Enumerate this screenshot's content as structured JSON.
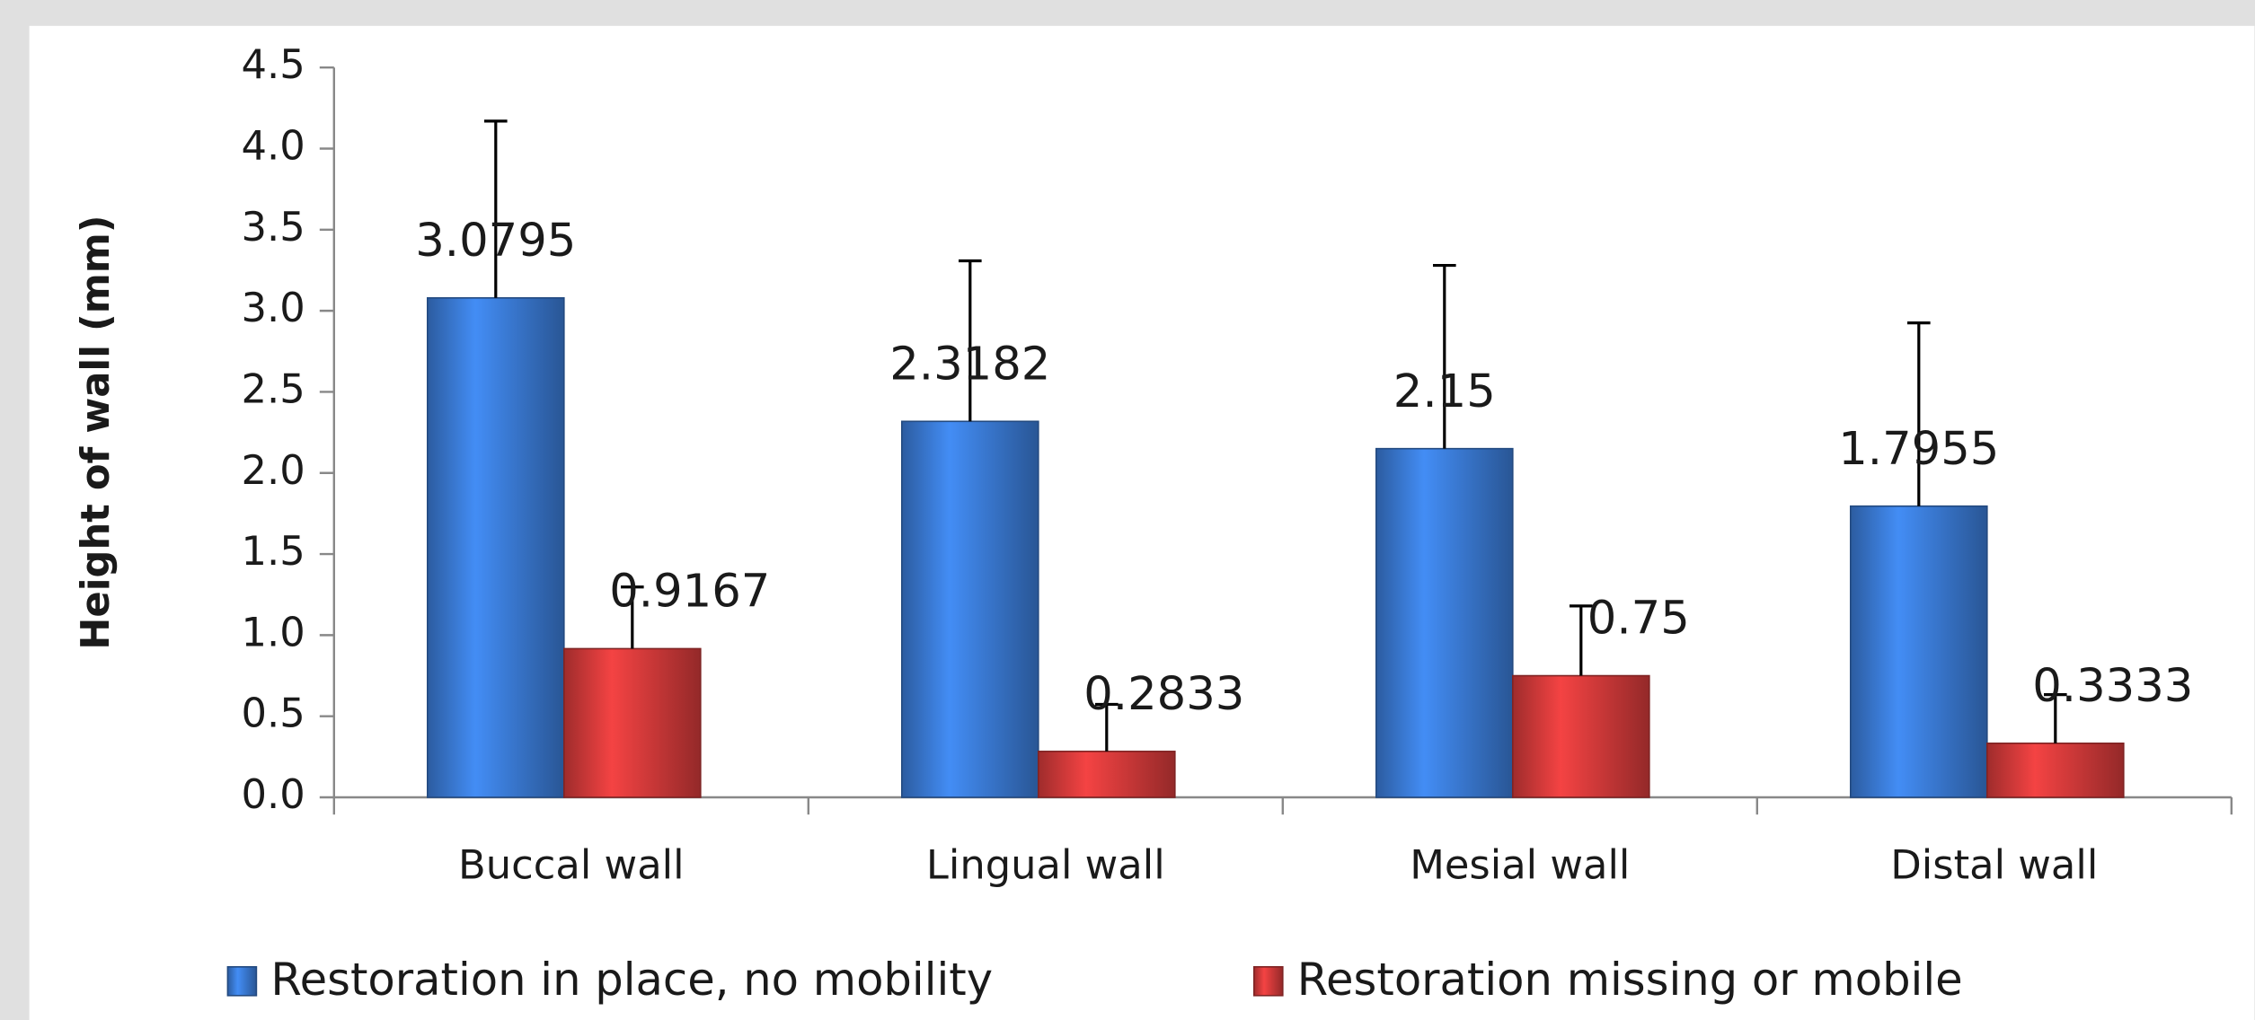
{
  "chart_data": {
    "type": "bar",
    "y_axis_label": "Height of wall (mm)",
    "categories": [
      "Buccal wall",
      "Lingual wall",
      "Mesial wall",
      "Distal wall"
    ],
    "series": [
      {
        "name": "Restoration in place, no mobility",
        "color": "#3a7bd5",
        "values": [
          3.0795,
          2.3182,
          2.15,
          1.7955
        ],
        "errors": [
          1.09,
          0.99,
          1.13,
          1.13
        ]
      },
      {
        "name": "Restoration missing or mobile",
        "color": "#d43a3a",
        "values": [
          0.9167,
          0.2833,
          0.75,
          0.3333
        ],
        "errors": [
          0.38,
          0.29,
          0.43,
          0.3
        ]
      }
    ],
    "ylim": [
      0,
      4.5
    ],
    "yticks": [
      {
        "value": 0,
        "label": "0.0"
      },
      0.5,
      {
        "value": 1,
        "label": "1.0"
      },
      1.5,
      {
        "value": 2,
        "label": "2.0"
      },
      2.5,
      {
        "value": 3,
        "label": "3.0"
      },
      3.5,
      {
        "value": 4,
        "label": "4.0"
      },
      4.5
    ],
    "legend": "bottom"
  }
}
